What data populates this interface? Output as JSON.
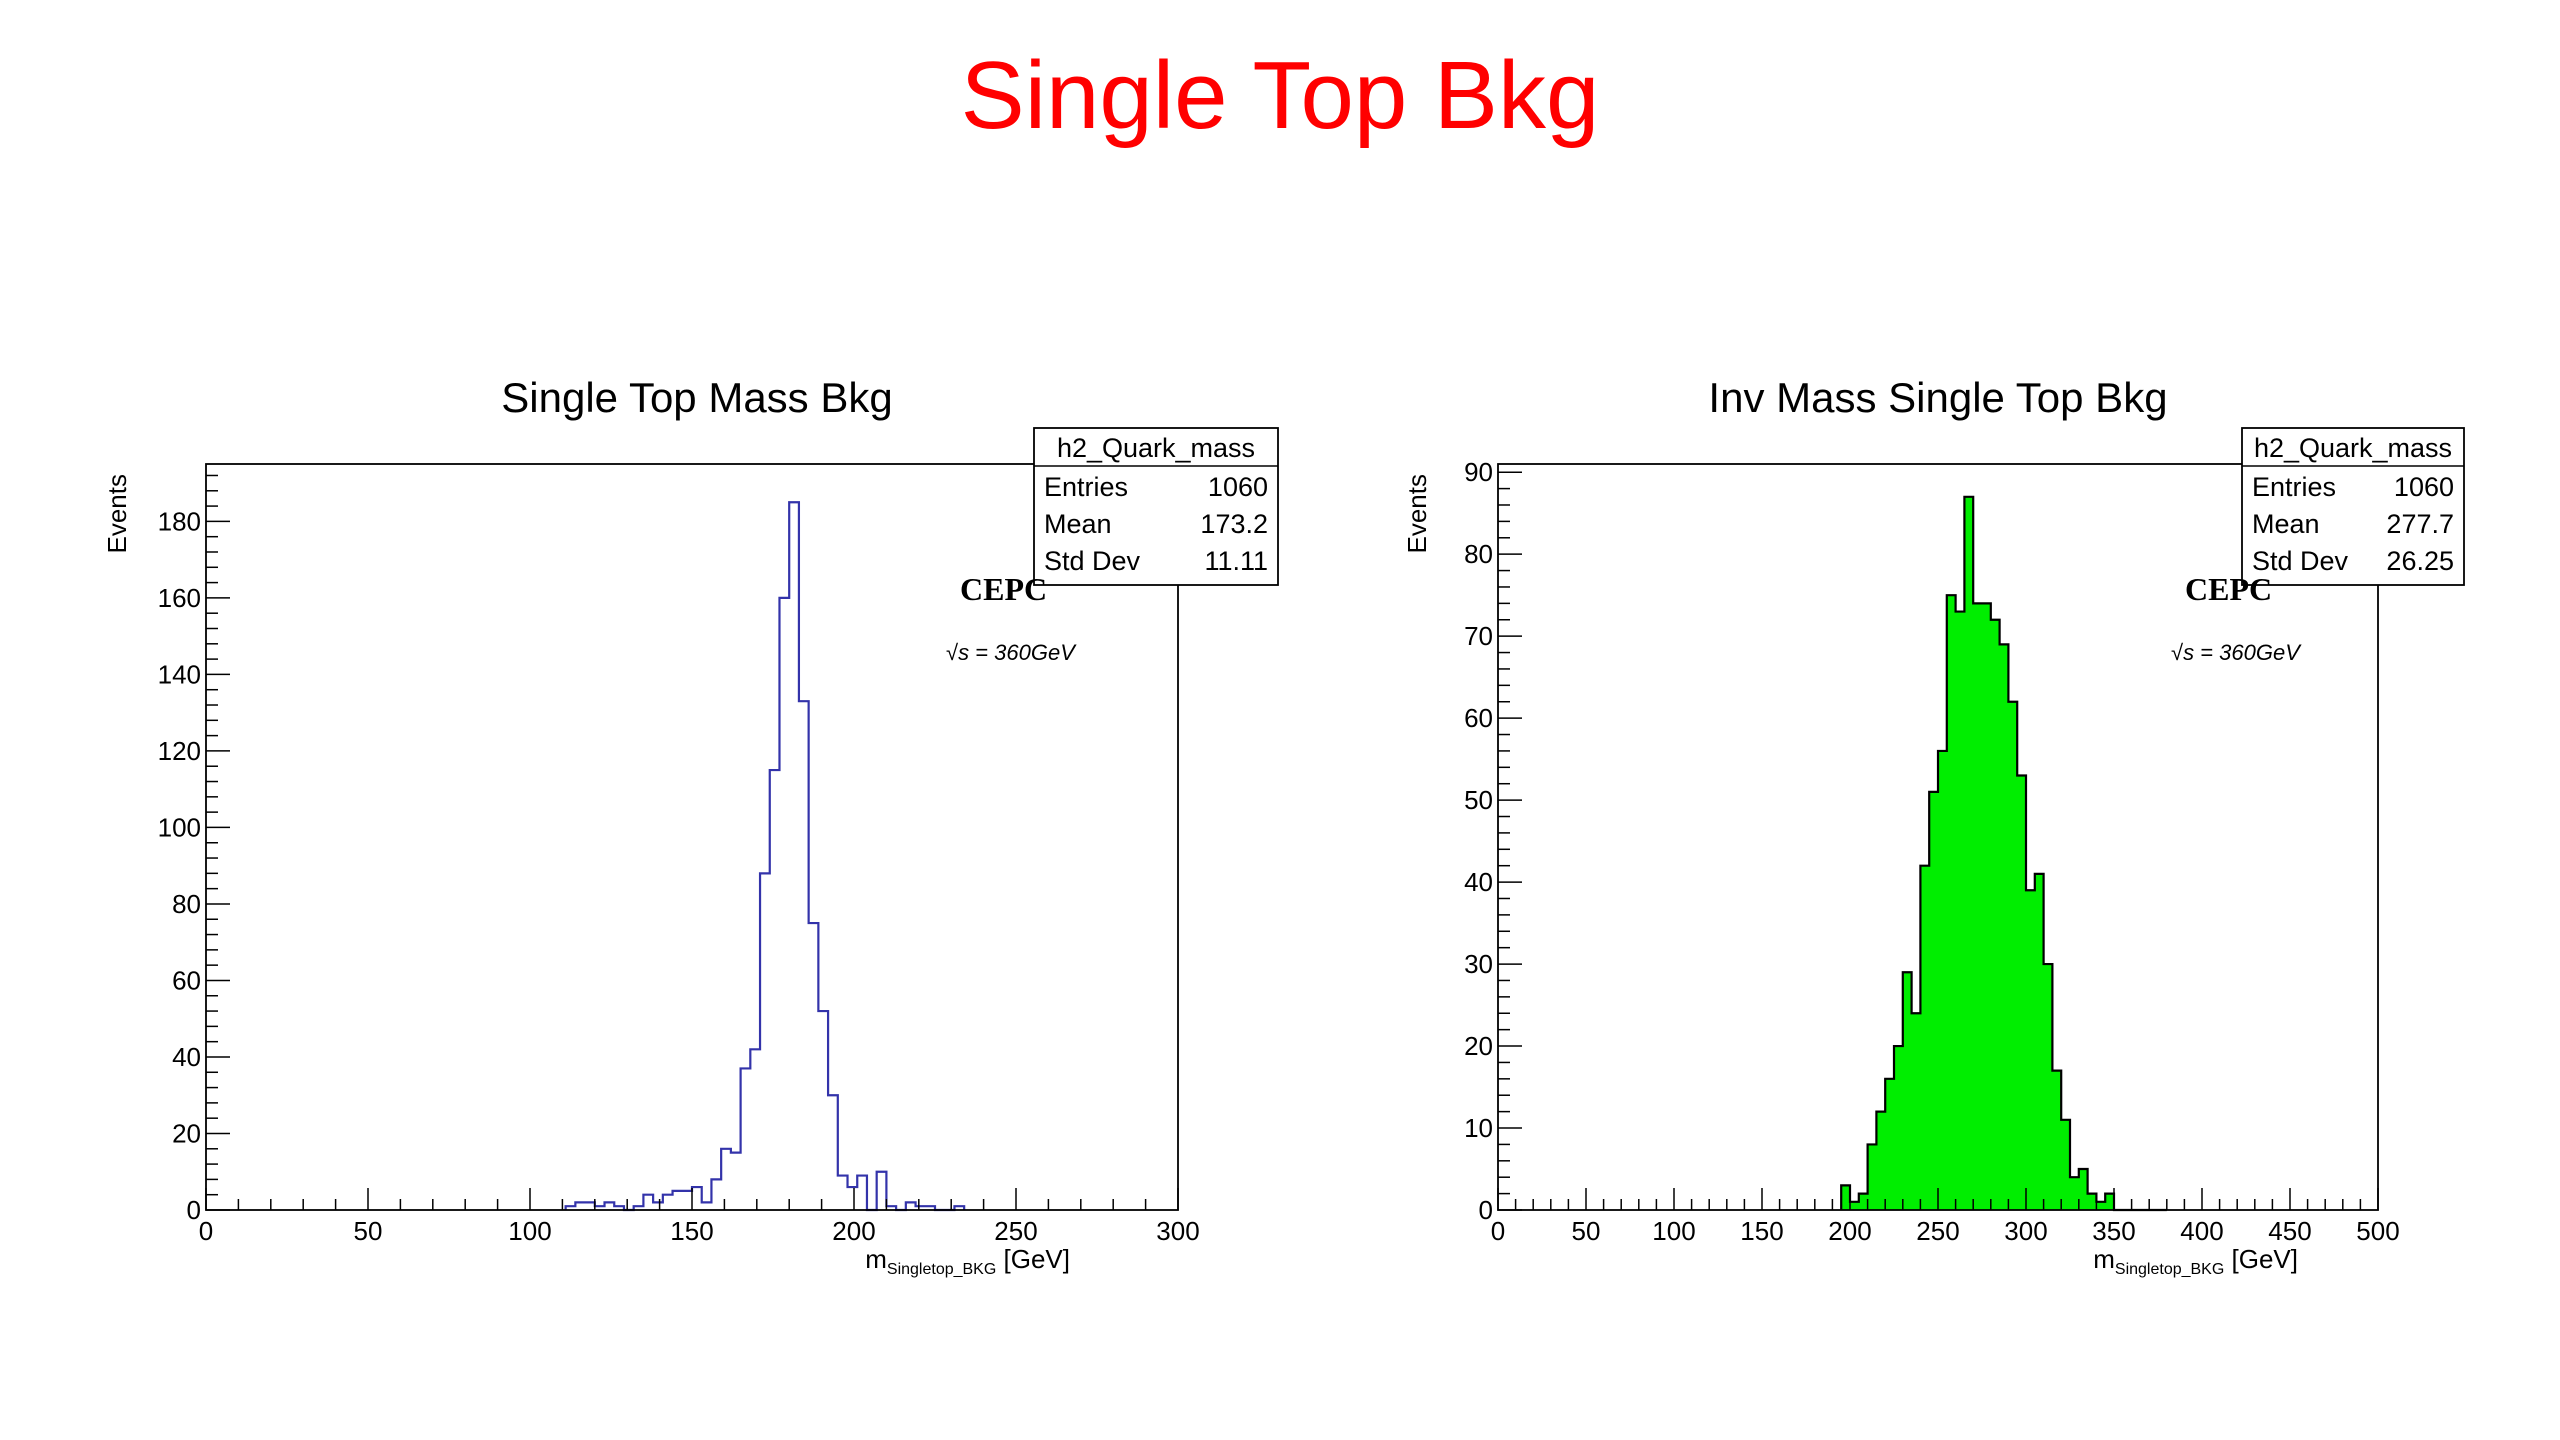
{
  "slide": {
    "title": "Single Top Bkg",
    "title_color": "#ff0000"
  },
  "chart_data": [
    {
      "type": "histogram",
      "title": "Single Top Mass Bkg",
      "ylabel": "Events",
      "xlabel": "m",
      "xlabel_subscript": "Singletop_BKG",
      "xlabel_unit": "[GeV]",
      "xlim": [
        0,
        300
      ],
      "ylim": [
        0,
        195
      ],
      "x_ticks": [
        0,
        50,
        100,
        150,
        200,
        250,
        300
      ],
      "y_ticks": [
        0,
        20,
        40,
        60,
        80,
        100,
        120,
        140,
        160,
        180
      ],
      "bin_width": 3,
      "bin_start": 111,
      "values": [
        1,
        2,
        2,
        1,
        2,
        1,
        0,
        1,
        4,
        2,
        4,
        5,
        5,
        6,
        2,
        8,
        16,
        15,
        37,
        42,
        88,
        115,
        160,
        185,
        133,
        75,
        52,
        30,
        9,
        6,
        9,
        0,
        10,
        1,
        0,
        2,
        1,
        1,
        0,
        0,
        1
      ],
      "style": "step",
      "line_color": "#3333aa",
      "fill_color": "none",
      "stats": {
        "name": "h2_Quark_mass",
        "rows": [
          {
            "label": "Entries",
            "value": "1060"
          },
          {
            "label": "Mean",
            "value": "173.2"
          },
          {
            "label": "Std Dev",
            "value": "11.11"
          }
        ]
      },
      "annotation": {
        "experiment": "CEPC",
        "energy": "√s = 360GeV"
      }
    },
    {
      "type": "histogram",
      "title": "Inv Mass Single Top Bkg",
      "ylabel": "Events",
      "xlabel": "m",
      "xlabel_subscript": "Singletop_BKG",
      "xlabel_unit": "[GeV]",
      "xlim": [
        0,
        500
      ],
      "ylim": [
        0,
        91
      ],
      "x_ticks": [
        0,
        50,
        100,
        150,
        200,
        250,
        300,
        350,
        400,
        450,
        500
      ],
      "y_ticks": [
        0,
        10,
        20,
        30,
        40,
        50,
        60,
        70,
        80,
        90
      ],
      "bin_width": 5,
      "bin_start": 195,
      "values": [
        3,
        1,
        2,
        8,
        12,
        16,
        20,
        29,
        24,
        42,
        51,
        56,
        75,
        73,
        87,
        74,
        74,
        72,
        69,
        62,
        53,
        39,
        41,
        30,
        17,
        11,
        4,
        5,
        2,
        1,
        2,
        0,
        0,
        0,
        0,
        0,
        0
      ],
      "style": "filled",
      "line_color": "#000000",
      "fill_color": "#00ee00",
      "stats": {
        "name": "h2_Quark_mass",
        "rows": [
          {
            "label": "Entries",
            "value": "1060"
          },
          {
            "label": "Mean",
            "value": "277.7"
          },
          {
            "label": "Std Dev",
            "value": "26.25"
          }
        ]
      },
      "annotation": {
        "experiment": "CEPC",
        "energy": "√s = 360GeV"
      }
    }
  ]
}
